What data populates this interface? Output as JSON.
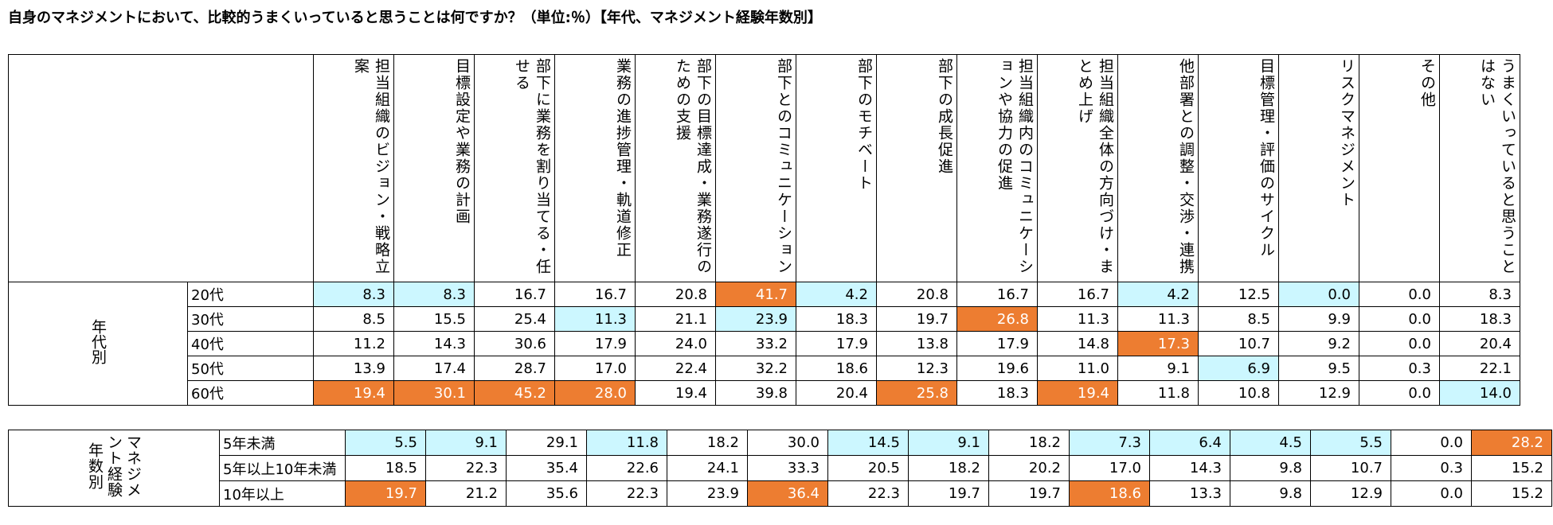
{
  "title": "自身のマネジメントにおいて、比較的うまくいっていると思うことは何ですか？（単位:％）【年代、マネジメント経験年数別】",
  "colors": {
    "high": "#ed7d31",
    "low": "#ccf7ff"
  },
  "columns": [
    "担当組織のビジョン・戦略立案",
    "目標設定や業務の計画",
    "部下に業務を割り当てる・任せる",
    "業務の進捗管理・軌道修正",
    "部下の目標達成・業務遂行のための支援",
    "部下とのコミュニケーション",
    "部下のモチベート",
    "部下の成長促進",
    "担当組織内のコミュニケーションや協力の促進",
    "担当組織全体の方向づけ・まとめ上げ",
    "他部署との調整・交渉・連携",
    "目標管理・評価のサイクル",
    "リスクマネジメント",
    "その他",
    "うまくいっていると思うことはない"
  ],
  "groups": [
    {
      "label": "年代別",
      "rows": [
        {
          "label": "20代",
          "values": [
            "8.3",
            "8.3",
            "16.7",
            "16.7",
            "20.8",
            "41.7",
            "4.2",
            "20.8",
            "16.7",
            "16.7",
            "4.2",
            "12.5",
            "0.0",
            "0.0",
            "8.3"
          ],
          "hl": [
            "lo",
            "lo",
            "",
            "",
            "",
            "hi",
            "lo",
            "",
            "",
            "",
            "lo",
            "",
            "lo",
            "",
            ""
          ]
        },
        {
          "label": "30代",
          "values": [
            "8.5",
            "15.5",
            "25.4",
            "11.3",
            "21.1",
            "23.9",
            "18.3",
            "19.7",
            "26.8",
            "11.3",
            "11.3",
            "8.5",
            "9.9",
            "0.0",
            "18.3"
          ],
          "hl": [
            "",
            "",
            "",
            "lo",
            "",
            "lo",
            "",
            "",
            "hi",
            "",
            "",
            "",
            "",
            "",
            ""
          ]
        },
        {
          "label": "40代",
          "values": [
            "11.2",
            "14.3",
            "30.6",
            "17.9",
            "24.0",
            "33.2",
            "17.9",
            "13.8",
            "17.9",
            "14.8",
            "17.3",
            "10.7",
            "9.2",
            "0.0",
            "20.4"
          ],
          "hl": [
            "",
            "",
            "",
            "",
            "",
            "",
            "",
            "",
            "",
            "",
            "hi",
            "",
            "",
            "",
            ""
          ]
        },
        {
          "label": "50代",
          "values": [
            "13.9",
            "17.4",
            "28.7",
            "17.0",
            "22.4",
            "32.2",
            "18.6",
            "12.3",
            "19.6",
            "11.0",
            "9.1",
            "6.9",
            "9.5",
            "0.3",
            "22.1"
          ],
          "hl": [
            "",
            "",
            "",
            "",
            "",
            "",
            "",
            "",
            "",
            "",
            "",
            "lo",
            "",
            "",
            ""
          ]
        },
        {
          "label": "60代",
          "values": [
            "19.4",
            "30.1",
            "45.2",
            "28.0",
            "19.4",
            "39.8",
            "20.4",
            "25.8",
            "18.3",
            "19.4",
            "11.8",
            "10.8",
            "12.9",
            "0.0",
            "14.0"
          ],
          "hl": [
            "hi",
            "hi",
            "hi",
            "hi",
            "",
            "",
            "",
            "hi",
            "",
            "hi",
            "",
            "",
            "",
            "",
            "lo"
          ]
        }
      ]
    },
    {
      "label": "マネジメント経験年数別",
      "rows": [
        {
          "label": "5年未満",
          "values": [
            "5.5",
            "9.1",
            "29.1",
            "11.8",
            "18.2",
            "30.0",
            "14.5",
            "9.1",
            "18.2",
            "7.3",
            "6.4",
            "4.5",
            "5.5",
            "0.0",
            "28.2"
          ],
          "hl": [
            "lo",
            "lo",
            "",
            "lo",
            "",
            "",
            "lo",
            "lo",
            "",
            "lo",
            "lo",
            "lo",
            "lo",
            "",
            "hi"
          ]
        },
        {
          "label": "5年以上10年未満",
          "values": [
            "18.5",
            "22.3",
            "35.4",
            "22.6",
            "24.1",
            "33.3",
            "20.5",
            "18.2",
            "20.2",
            "17.0",
            "14.3",
            "9.8",
            "10.7",
            "0.3",
            "15.2"
          ],
          "hl": [
            "",
            "",
            "",
            "",
            "",
            "",
            "",
            "",
            "",
            "",
            "",
            "",
            "",
            "",
            ""
          ]
        },
        {
          "label": "10年以上",
          "values": [
            "19.7",
            "21.2",
            "35.6",
            "22.3",
            "23.9",
            "36.4",
            "22.3",
            "19.7",
            "19.7",
            "18.6",
            "13.3",
            "9.8",
            "12.9",
            "0.0",
            "15.2"
          ],
          "hl": [
            "hi",
            "",
            "",
            "",
            "",
            "hi",
            "",
            "",
            "",
            "hi",
            "",
            "",
            "",
            "",
            ""
          ]
        }
      ]
    }
  ]
}
